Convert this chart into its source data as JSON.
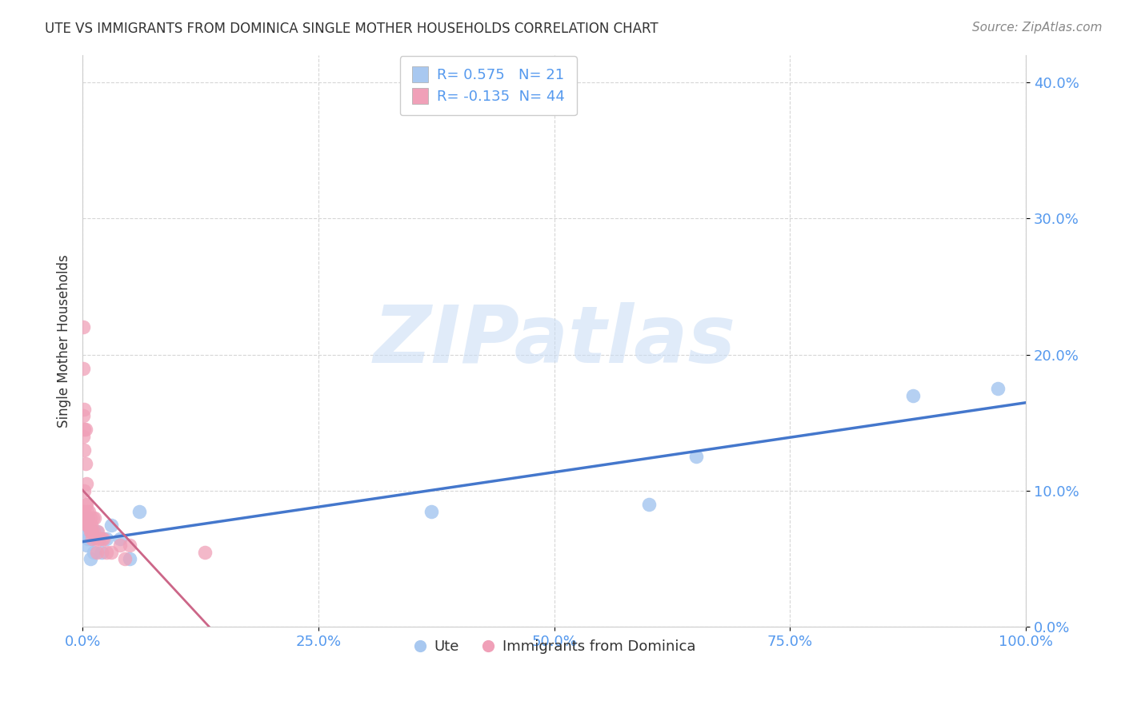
{
  "title": "UTE VS IMMIGRANTS FROM DOMINICA SINGLE MOTHER HOUSEHOLDS CORRELATION CHART",
  "source": "Source: ZipAtlas.com",
  "ylabel": "Single Mother Households",
  "legend_label1": "Ute",
  "legend_label2": "Immigrants from Dominica",
  "R1": 0.575,
  "N1": 21,
  "R2": -0.135,
  "N2": 44,
  "color_blue": "#A8C8F0",
  "color_pink": "#F0A0B8",
  "line_blue": "#4477CC",
  "line_pink": "#CC6688",
  "watermark_text": "ZIPatlas",
  "xlim": [
    0.0,
    1.0
  ],
  "ylim": [
    0.0,
    0.42
  ],
  "xticks": [
    0.0,
    0.25,
    0.5,
    0.75,
    1.0
  ],
  "yticks": [
    0.0,
    0.1,
    0.2,
    0.3,
    0.4
  ],
  "ute_x": [
    0.002,
    0.003,
    0.004,
    0.005,
    0.006,
    0.008,
    0.009,
    0.01,
    0.012,
    0.015,
    0.02,
    0.025,
    0.03,
    0.04,
    0.05,
    0.06,
    0.37,
    0.6,
    0.65,
    0.88,
    0.97
  ],
  "ute_y": [
    0.07,
    0.075,
    0.06,
    0.08,
    0.065,
    0.05,
    0.07,
    0.065,
    0.055,
    0.07,
    0.055,
    0.065,
    0.075,
    0.065,
    0.05,
    0.085,
    0.085,
    0.09,
    0.125,
    0.17,
    0.175
  ],
  "dom_x": [
    0.001,
    0.001,
    0.001,
    0.001,
    0.001,
    0.002,
    0.002,
    0.002,
    0.002,
    0.002,
    0.003,
    0.003,
    0.003,
    0.003,
    0.004,
    0.004,
    0.004,
    0.005,
    0.005,
    0.005,
    0.006,
    0.006,
    0.007,
    0.007,
    0.008,
    0.008,
    0.009,
    0.009,
    0.01,
    0.011,
    0.012,
    0.013,
    0.015,
    0.015,
    0.016,
    0.018,
    0.02,
    0.022,
    0.025,
    0.03,
    0.04,
    0.045,
    0.05,
    0.13
  ],
  "dom_y": [
    0.22,
    0.19,
    0.155,
    0.14,
    0.085,
    0.16,
    0.145,
    0.13,
    0.1,
    0.085,
    0.145,
    0.12,
    0.09,
    0.08,
    0.105,
    0.09,
    0.08,
    0.085,
    0.08,
    0.075,
    0.08,
    0.075,
    0.085,
    0.075,
    0.08,
    0.07,
    0.075,
    0.07,
    0.065,
    0.08,
    0.07,
    0.08,
    0.065,
    0.055,
    0.07,
    0.065,
    0.065,
    0.065,
    0.055,
    0.055,
    0.06,
    0.05,
    0.06,
    0.055
  ],
  "background_color": "#ffffff",
  "grid_color": "#cccccc",
  "tick_color": "#5599EE",
  "title_color": "#333333",
  "ylabel_color": "#333333"
}
